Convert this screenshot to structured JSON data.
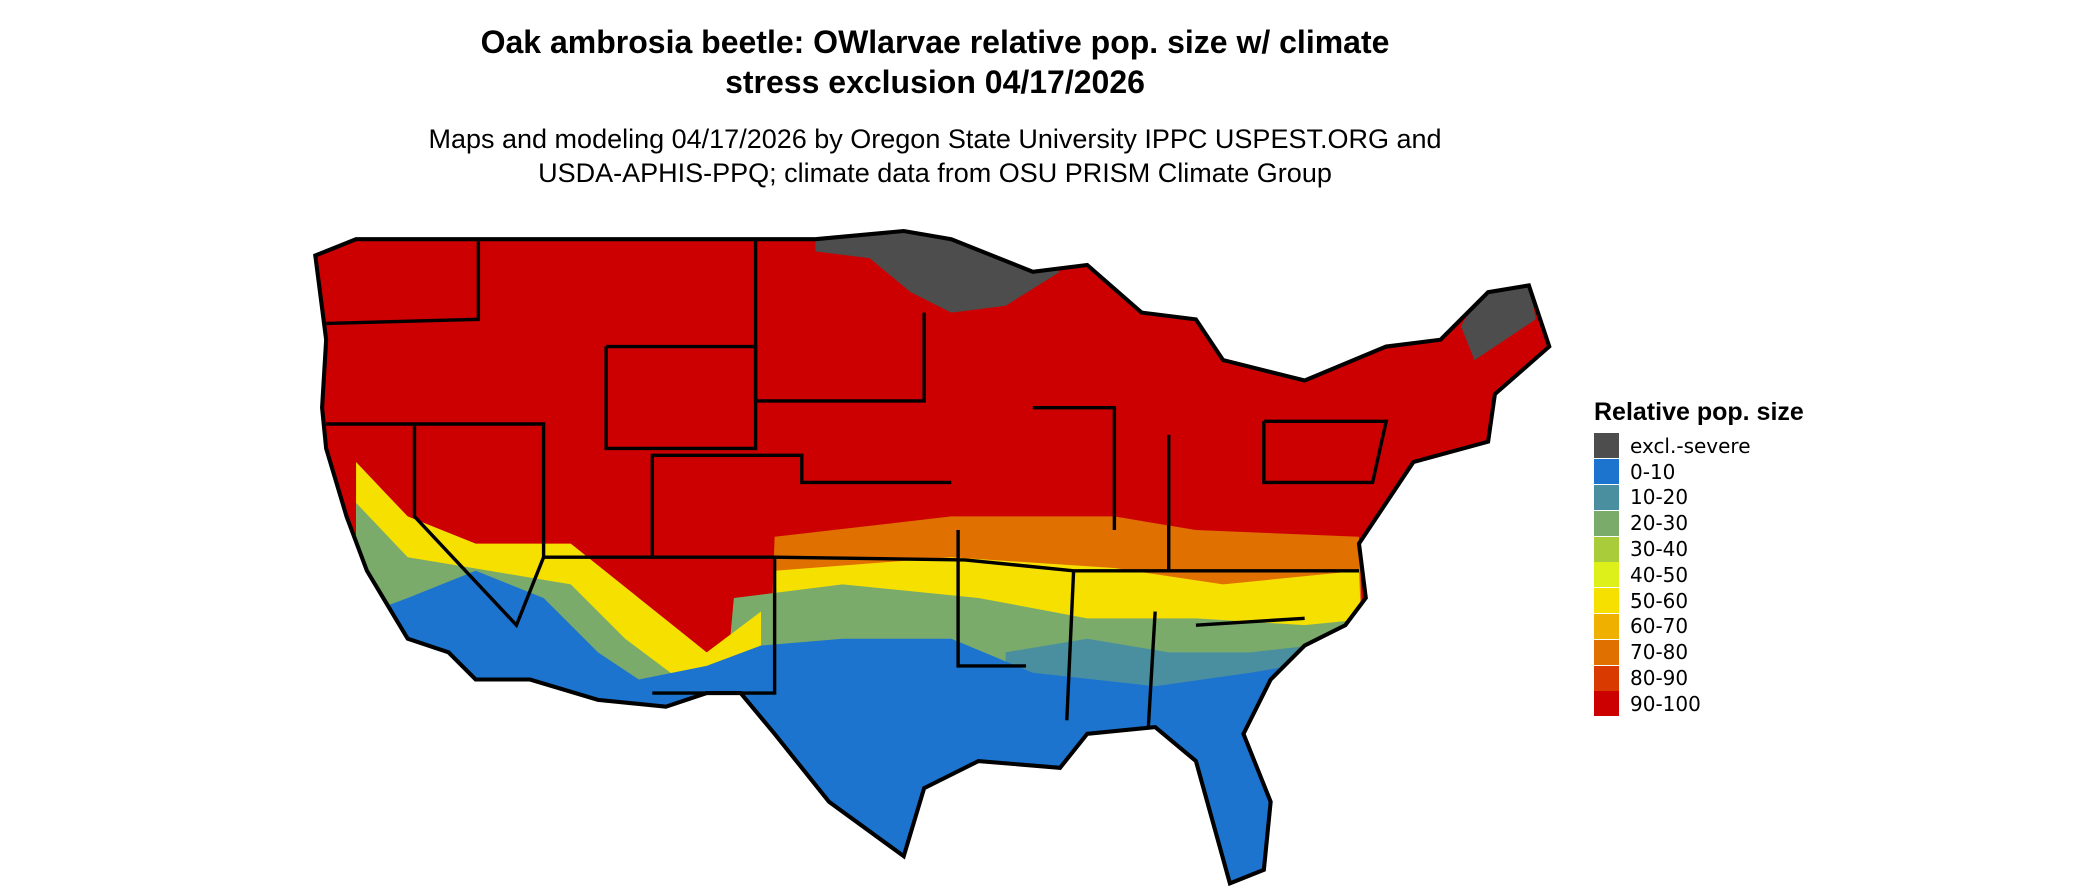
{
  "header": {
    "title": "Oak ambrosia beetle: OWlarvae relative pop. size w/ climate stress exclusion 04/17/2026",
    "subtitle": "Maps and modeling 04/17/2026 by Oregon State University IPPC USPEST.ORG and USDA-APHIS-PPQ; climate data from OSU PRISM Climate Group"
  },
  "legend": {
    "title": "Relative pop. size",
    "items": [
      {
        "label": "excl.-severe",
        "color": "#4d4d4d"
      },
      {
        "label": "0-10",
        "color": "#1c74cf"
      },
      {
        "label": "10-20",
        "color": "#4a8fa0"
      },
      {
        "label": "20-30",
        "color": "#7aab6a"
      },
      {
        "label": "30-40",
        "color": "#a9cc3a"
      },
      {
        "label": "40-50",
        "color": "#def01a"
      },
      {
        "label": "50-60",
        "color": "#f6e000"
      },
      {
        "label": "60-70",
        "color": "#f0b000"
      },
      {
        "label": "70-80",
        "color": "#e07000"
      },
      {
        "label": "80-90",
        "color": "#d83a00"
      },
      {
        "label": "90-100",
        "color": "#cc0000"
      }
    ]
  }
}
